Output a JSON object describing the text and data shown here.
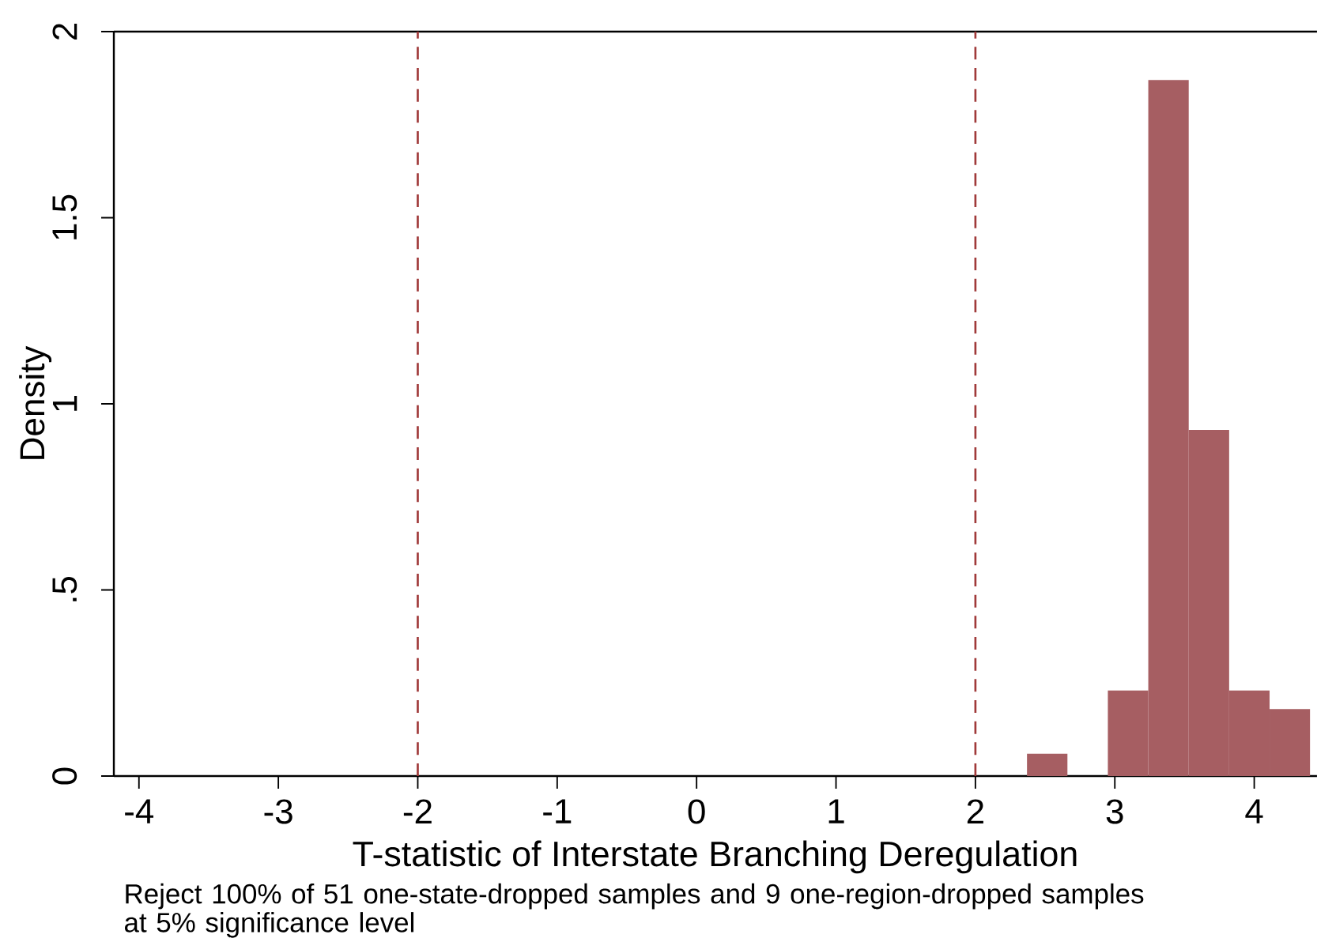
{
  "chart_data": {
    "type": "histogram",
    "xlabel": "T-statistic of Interstate Branching Deregulation",
    "ylabel": "Density",
    "annotations": [
      "Reject 100% of 51 one-state-dropped samples and 9 one-region-dropped samples at 5% significance level"
    ],
    "bins": [
      2.37,
      2.66,
      2.95,
      3.24,
      3.53,
      3.82,
      4.11,
      4.4
    ],
    "values": [
      0.06,
      0,
      0.23,
      1.87,
      0.93,
      0.23,
      0.18
    ],
    "color": "#a65e62",
    "xlim": [
      -4.18,
      4.45
    ],
    "ylim": [
      0,
      2
    ],
    "xticks": [
      -4,
      -3,
      -2,
      -1,
      0,
      1,
      2,
      3,
      4
    ],
    "yticks": [
      0,
      {
        "value": 0.5,
        "label": ".5"
      },
      1,
      1.5,
      2
    ],
    "ref_lines": [
      {
        "axis": "x",
        "value": -2,
        "color": "#a03a3a",
        "line_style": "dashed"
      },
      {
        "axis": "x",
        "value": 2,
        "color": "#a03a3a",
        "line_style": "dashed"
      }
    ]
  }
}
